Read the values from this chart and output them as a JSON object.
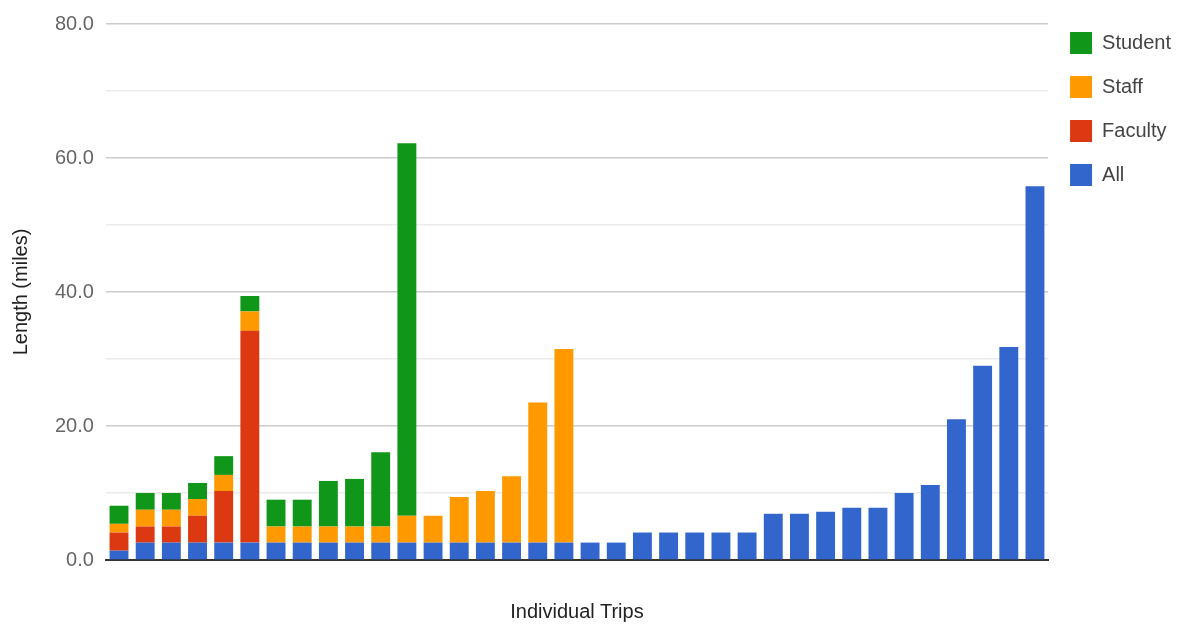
{
  "chart_data": {
    "type": "bar",
    "stacked": true,
    "xlabel": "Individual Trips",
    "ylabel": "Length (miles)",
    "categories": [
      null,
      null,
      null,
      null,
      null,
      null,
      null,
      null,
      null,
      null,
      null,
      null,
      null,
      null,
      null,
      null,
      null,
      null,
      null,
      null,
      null,
      null,
      null,
      null,
      null,
      null,
      null,
      null,
      null,
      null,
      null,
      null,
      null,
      null,
      null,
      null
    ],
    "series": [
      {
        "name": "All",
        "color": "#3366cc",
        "values": [
          1.4,
          2.6,
          2.6,
          2.6,
          2.6,
          2.6,
          2.6,
          2.6,
          2.6,
          2.6,
          2.6,
          2.6,
          2.6,
          2.6,
          2.6,
          2.6,
          2.6,
          2.6,
          2.6,
          2.6,
          4.1,
          4.1,
          4.1,
          4.1,
          4.1,
          6.9,
          6.9,
          7.2,
          7.8,
          7.8,
          10.0,
          11.2,
          21.0,
          29.0,
          31.8,
          55.8
        ]
      },
      {
        "name": "Faculty",
        "color": "#dc3912",
        "values": [
          2.7,
          2.4,
          2.4,
          4.0,
          7.7,
          31.6,
          null,
          null,
          null,
          null,
          null,
          null,
          null,
          null,
          null,
          null,
          null,
          null,
          null,
          null,
          null,
          null,
          null,
          null,
          null,
          null,
          null,
          null,
          null,
          null,
          null,
          null,
          null,
          null,
          null,
          null
        ]
      },
      {
        "name": "Staff",
        "color": "#ff9900",
        "values": [
          1.3,
          2.5,
          2.5,
          2.5,
          2.4,
          2.9,
          2.4,
          2.4,
          2.4,
          2.4,
          2.4,
          4.0,
          4.0,
          6.8,
          7.7,
          9.9,
          20.9,
          28.9,
          null,
          null,
          null,
          null,
          null,
          null,
          null,
          null,
          null,
          null,
          null,
          null,
          null,
          null,
          null,
          null,
          null,
          null
        ]
      },
      {
        "name": "Student",
        "color": "#109618",
        "values": [
          2.7,
          2.5,
          2.5,
          2.4,
          2.8,
          2.3,
          4.0,
          4.0,
          6.8,
          7.1,
          11.1,
          55.6,
          null,
          null,
          null,
          null,
          null,
          null,
          null,
          null,
          null,
          null,
          null,
          null,
          null,
          null,
          null,
          null,
          null,
          null,
          null,
          null,
          null,
          null,
          null,
          null
        ]
      }
    ],
    "ylim": [
      0,
      80
    ],
    "yticks": [
      {
        "value": 0,
        "label": "0.0"
      },
      {
        "value": 10,
        "label": null
      },
      {
        "value": 20,
        "label": "20.0"
      },
      {
        "value": 30,
        "label": null
      },
      {
        "value": 40,
        "label": "40.0"
      },
      {
        "value": 50,
        "label": null
      },
      {
        "value": 60,
        "label": "60.0"
      },
      {
        "value": 70,
        "label": null
      },
      {
        "value": 80,
        "label": "80.0"
      }
    ],
    "grid": "y",
    "legend": "right"
  }
}
